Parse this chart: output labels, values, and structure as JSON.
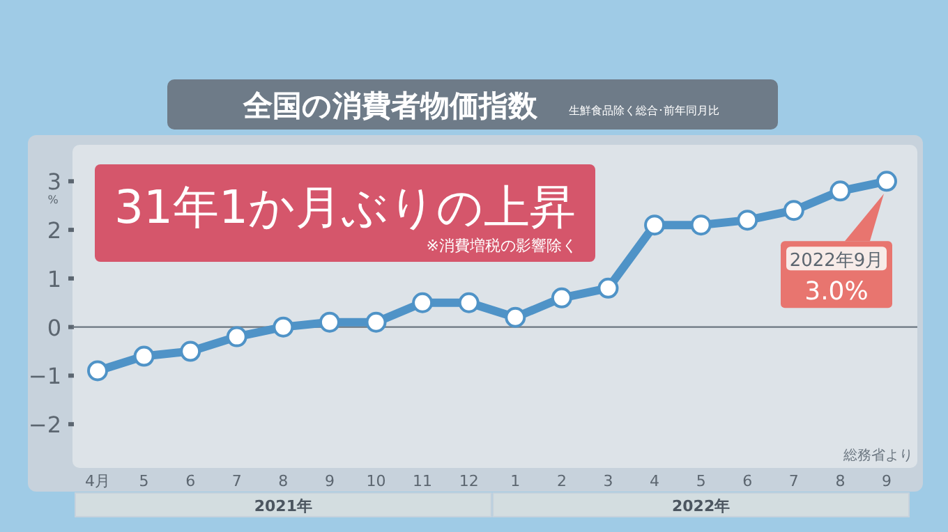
{
  "chart_data": {
    "type": "line",
    "title": "全国の消費者物価指数",
    "subtitle": "生鮮食品除く総合･前年同月比",
    "ylabel": "%",
    "categories": [
      "4月",
      "5",
      "6",
      "7",
      "8",
      "9",
      "10",
      "11",
      "12",
      "1",
      "2",
      "3",
      "4",
      "5",
      "6",
      "7",
      "8",
      "9"
    ],
    "series": [
      {
        "color": "#4f93c7",
        "values": [
          -0.9,
          -0.6,
          -0.5,
          -0.2,
          0.0,
          0.1,
          0.1,
          0.5,
          0.5,
          0.2,
          0.6,
          0.8,
          2.1,
          2.1,
          2.2,
          2.4,
          2.8,
          3.0
        ]
      }
    ],
    "ylim": [
      -2.9,
      3.75
    ],
    "yticks": [
      -2,
      -1,
      0,
      1,
      2,
      3
    ],
    "marker": "circle",
    "line_style": "solid",
    "grid": false,
    "ref_lines": [
      {
        "axis": "y",
        "value": 0,
        "color": "#6b7680"
      }
    ],
    "annotations": [
      "31年1か月ぶりの上昇",
      "※消費増税の影響除く",
      "総務省より",
      "2022年9月",
      "3.0%",
      "2021年",
      "2022年"
    ]
  }
}
